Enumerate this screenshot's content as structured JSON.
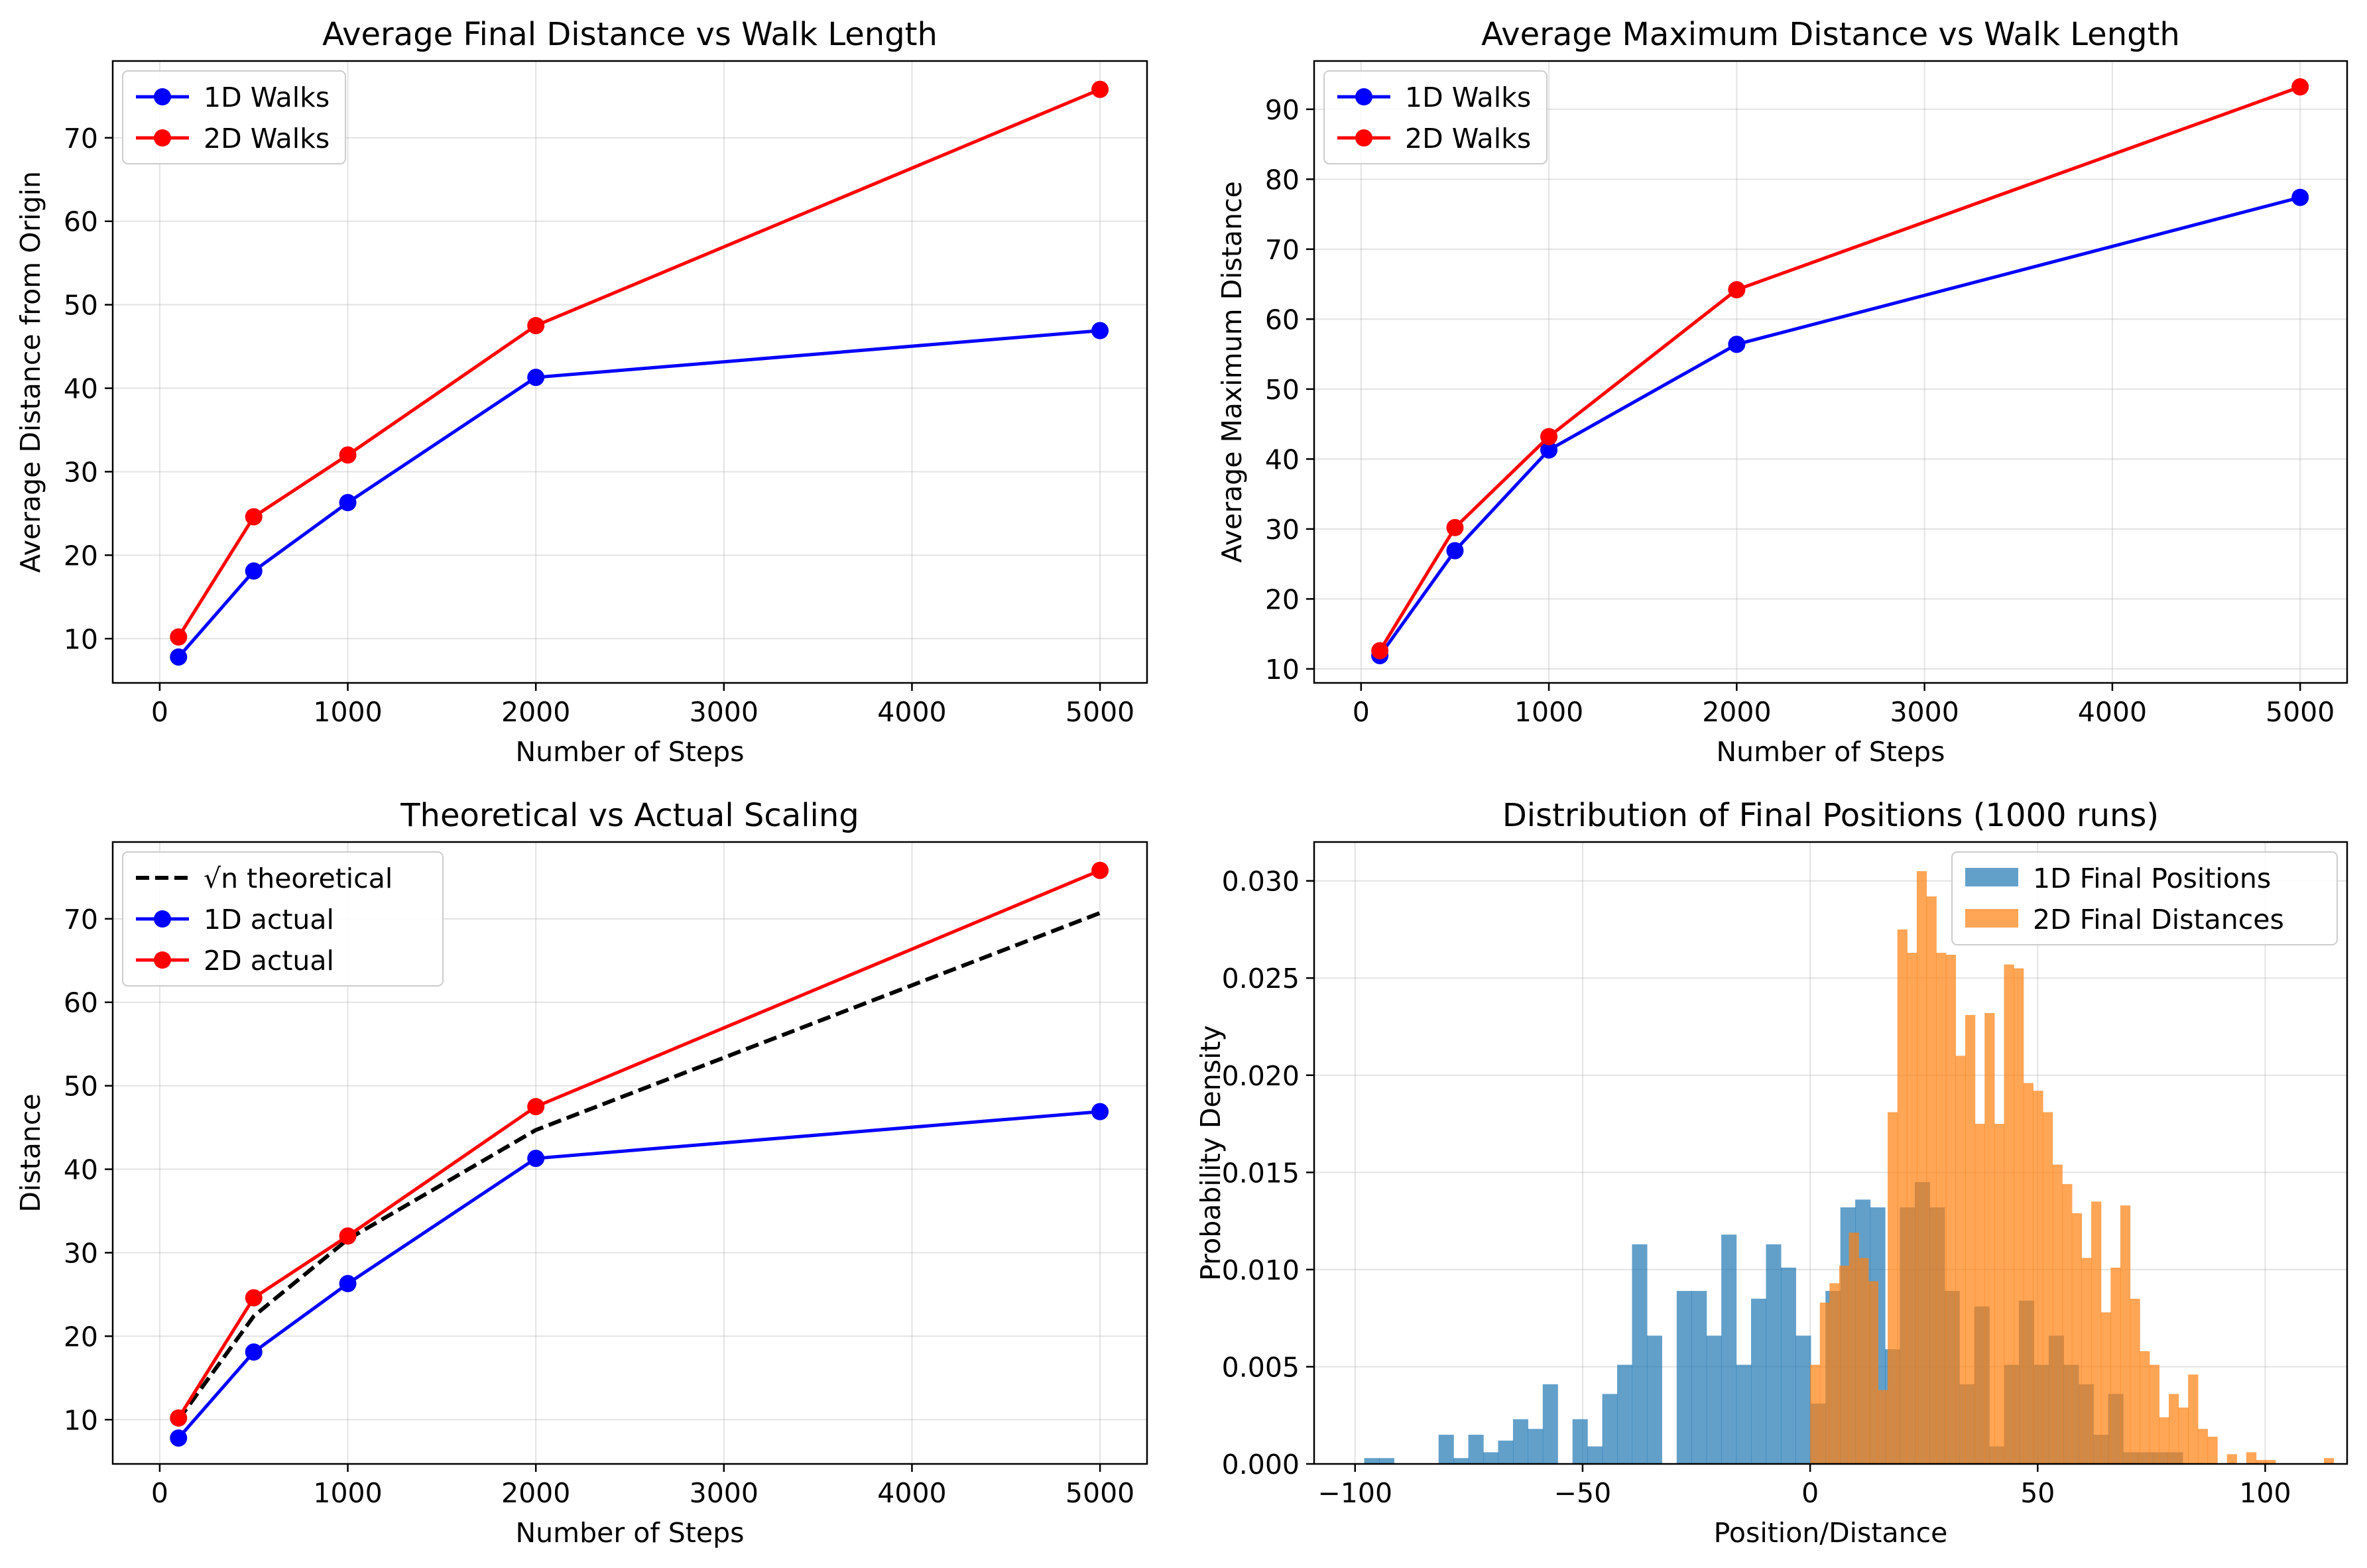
{
  "chart_data": [
    {
      "type": "line",
      "title": "Average Final Distance vs Walk Length",
      "xlabel": "Number of Steps",
      "ylabel": "Average Distance from Origin",
      "xlim": [
        -250,
        5250
      ],
      "ylim": [
        4.7,
        79.2
      ],
      "xticks": [
        0,
        1000,
        2000,
        3000,
        4000,
        5000
      ],
      "xtick_labels": [
        "0",
        "1000",
        "2000",
        "3000",
        "4000",
        "5000"
      ],
      "yticks": [
        10,
        20,
        30,
        40,
        50,
        60,
        70
      ],
      "ytick_labels": [
        "10",
        "20",
        "30",
        "40",
        "50",
        "60",
        "70"
      ],
      "grid": true,
      "legend_position": "upper-left",
      "x": [
        100,
        500,
        1000,
        2000,
        5000
      ],
      "series": [
        {
          "name": "1D Walks",
          "color": "#0000ff",
          "style": "solid",
          "marker": true,
          "values": [
            7.8,
            18.1,
            26.3,
            41.3,
            46.9
          ]
        },
        {
          "name": "2D Walks",
          "color": "#ff0000",
          "style": "solid",
          "marker": true,
          "values": [
            10.2,
            24.6,
            32.0,
            47.5,
            75.8
          ]
        }
      ]
    },
    {
      "type": "line",
      "title": "Average Maximum Distance vs Walk Length",
      "xlabel": "Number of Steps",
      "ylabel": "Average Maximum Distance",
      "xlim": [
        -250,
        5250
      ],
      "ylim": [
        8.0,
        96.9
      ],
      "xticks": [
        0,
        1000,
        2000,
        3000,
        4000,
        5000
      ],
      "xtick_labels": [
        "0",
        "1000",
        "2000",
        "3000",
        "4000",
        "5000"
      ],
      "yticks": [
        10,
        20,
        30,
        40,
        50,
        60,
        70,
        80,
        90
      ],
      "ytick_labels": [
        "10",
        "20",
        "30",
        "40",
        "50",
        "60",
        "70",
        "80",
        "90"
      ],
      "grid": true,
      "legend_position": "upper-left",
      "x": [
        100,
        500,
        1000,
        2000,
        5000
      ],
      "series": [
        {
          "name": "1D Walks",
          "color": "#0000ff",
          "style": "solid",
          "marker": true,
          "values": [
            11.9,
            26.9,
            41.3,
            56.4,
            77.4
          ]
        },
        {
          "name": "2D Walks",
          "color": "#ff0000",
          "style": "solid",
          "marker": true,
          "values": [
            12.6,
            30.2,
            43.2,
            64.2,
            93.2
          ]
        }
      ]
    },
    {
      "type": "line",
      "title": "Theoretical vs Actual Scaling",
      "xlabel": "Number of Steps",
      "ylabel": "Distance",
      "xlim": [
        -250,
        5250
      ],
      "ylim": [
        4.7,
        79.2
      ],
      "xticks": [
        0,
        1000,
        2000,
        3000,
        4000,
        5000
      ],
      "xtick_labels": [
        "0",
        "1000",
        "2000",
        "3000",
        "4000",
        "5000"
      ],
      "yticks": [
        10,
        20,
        30,
        40,
        50,
        60,
        70
      ],
      "ytick_labels": [
        "10",
        "20",
        "30",
        "40",
        "50",
        "60",
        "70"
      ],
      "grid": true,
      "legend_position": "upper-left",
      "x": [
        100,
        500,
        1000,
        2000,
        5000
      ],
      "series": [
        {
          "name": "√n theoretical",
          "color": "#000000",
          "style": "dashed",
          "marker": false,
          "values": [
            10.0,
            22.4,
            31.6,
            44.7,
            70.7
          ]
        },
        {
          "name": "1D actual",
          "color": "#0000ff",
          "style": "solid",
          "marker": true,
          "values": [
            7.8,
            18.1,
            26.3,
            41.3,
            46.9
          ]
        },
        {
          "name": "2D actual",
          "color": "#ff0000",
          "style": "solid",
          "marker": true,
          "values": [
            10.2,
            24.6,
            32.0,
            47.5,
            75.8
          ]
        }
      ]
    },
    {
      "type": "histogram",
      "title": "Distribution of Final Positions (1000 runs)",
      "xlabel": "Position/Distance",
      "ylabel": "Probability Density",
      "xlim": [
        -109,
        118
      ],
      "ylim": [
        0,
        0.032
      ],
      "xticks": [
        -100,
        -50,
        0,
        50,
        100
      ],
      "xtick_labels": [
        "−100",
        "−50",
        "0",
        "50",
        "100"
      ],
      "yticks": [
        0.0,
        0.005,
        0.01,
        0.015,
        0.02,
        0.025,
        0.03
      ],
      "ytick_labels": [
        "0.000",
        "0.005",
        "0.010",
        "0.015",
        "0.020",
        "0.025",
        "0.030"
      ],
      "grid": true,
      "legend_position": "upper-right",
      "series": [
        {
          "name": "1D Final Positions",
          "color": "#1f77b4",
          "alpha": 0.7,
          "bin_start": -98,
          "bin_width": 3.27,
          "density": [
            0.0003,
            0.0003,
            0.0,
            0.0,
            0.0,
            0.0015,
            0.0003,
            0.0015,
            0.0006,
            0.0012,
            0.0023,
            0.0018,
            0.0041,
            0.0,
            0.0023,
            0.0009,
            0.0036,
            0.0051,
            0.0113,
            0.0066,
            0.0,
            0.0089,
            0.0089,
            0.0066,
            0.0118,
            0.0051,
            0.0085,
            0.0113,
            0.0101,
            0.0066,
            0.0031,
            0.0089,
            0.0132,
            0.0136,
            0.0132,
            0.0059,
            0.0132,
            0.0145,
            0.0132,
            0.0089,
            0.0041,
            0.0081,
            0.0009,
            0.0051,
            0.0084,
            0.0051,
            0.0066,
            0.0051,
            0.0041,
            0.0015,
            0.0036,
            0.0006,
            0.0006,
            0.0006,
            0.0006
          ]
        },
        {
          "name": "2D Final Distances",
          "color": "#ff7f0e",
          "alpha": 0.7,
          "bin_start": 0,
          "bin_width": 2.13,
          "density": [
            0.0051,
            0.0083,
            0.0093,
            0.0102,
            0.0119,
            0.0106,
            0.0094,
            0.0038,
            0.0181,
            0.0275,
            0.0263,
            0.0305,
            0.0292,
            0.0263,
            0.0262,
            0.021,
            0.0231,
            0.0175,
            0.0232,
            0.0175,
            0.0257,
            0.0255,
            0.0196,
            0.0192,
            0.0181,
            0.0154,
            0.0144,
            0.0129,
            0.0106,
            0.0135,
            0.0078,
            0.0101,
            0.0133,
            0.0085,
            0.0058,
            0.0051,
            0.0024,
            0.0036,
            0.0029,
            0.0046,
            0.0018,
            0.0014,
            0.0,
            0.0005,
            0.0,
            0.0006,
            0.0002,
            0.0002,
            0.0,
            0.0,
            0.0,
            0.0,
            0.0,
            0.0003,
            0.0
          ]
        }
      ]
    }
  ]
}
